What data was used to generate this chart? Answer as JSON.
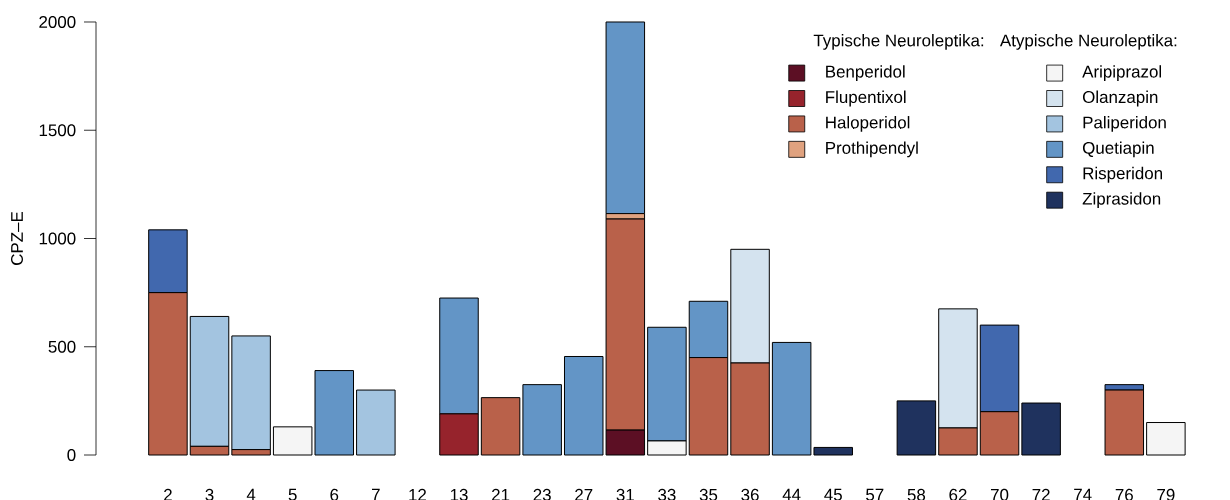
{
  "chart_data": {
    "type": "bar",
    "stacked": true,
    "ylabel": "CPZ–E",
    "legend": "top right",
    "annotations": [
      "Typische Neuroleptika:",
      "Atypische Neuroleptika:"
    ],
    "categories": [
      "2",
      "3",
      "4",
      "5",
      "6",
      "7",
      "12",
      "13",
      "21",
      "23",
      "27",
      "31",
      "33",
      "35",
      "36",
      "44",
      "45",
      "57",
      "58",
      "62",
      "70",
      "72",
      "74",
      "76",
      "79"
    ],
    "ylim": [
      0,
      2000
    ],
    "yticks": [
      0,
      500,
      1000,
      1500,
      2000
    ],
    "series": [
      {
        "name": "Benperidol",
        "color": "#5c0f24",
        "values": [
          0,
          0,
          0,
          0,
          0,
          0,
          0,
          0,
          0,
          0,
          0,
          115,
          0,
          0,
          0,
          0,
          0,
          0,
          0,
          0,
          0,
          0,
          0,
          0,
          0
        ]
      },
      {
        "name": "Flupentixol",
        "color": "#96232c",
        "values": [
          0,
          0,
          0,
          0,
          0,
          0,
          0,
          190,
          0,
          0,
          0,
          0,
          0,
          0,
          0,
          0,
          0,
          0,
          0,
          0,
          0,
          0,
          0,
          0,
          0
        ]
      },
      {
        "name": "Haloperidol",
        "color": "#b9614a",
        "values": [
          750,
          40,
          25,
          0,
          0,
          0,
          0,
          0,
          265,
          0,
          0,
          975,
          0,
          450,
          425,
          0,
          0,
          0,
          0,
          125,
          200,
          0,
          0,
          300,
          0
        ]
      },
      {
        "name": "Prothipendyl",
        "color": "#e0a27f",
        "values": [
          0,
          0,
          0,
          0,
          0,
          0,
          0,
          0,
          0,
          0,
          0,
          25,
          0,
          0,
          0,
          0,
          0,
          0,
          0,
          0,
          0,
          0,
          0,
          0,
          0
        ]
      },
      {
        "name": "Aripiprazol",
        "color": "#f5f5f5",
        "values": [
          0,
          0,
          0,
          130,
          0,
          0,
          0,
          0,
          0,
          0,
          0,
          0,
          65,
          0,
          0,
          0,
          0,
          0,
          0,
          0,
          0,
          0,
          0,
          0,
          150
        ]
      },
      {
        "name": "Olanzapin",
        "color": "#d4e3ef",
        "values": [
          0,
          0,
          0,
          0,
          0,
          0,
          0,
          0,
          0,
          0,
          0,
          0,
          0,
          0,
          525,
          0,
          0,
          0,
          0,
          550,
          0,
          0,
          0,
          0,
          0
        ]
      },
      {
        "name": "Paliperidon",
        "color": "#a3c4e0",
        "values": [
          0,
          600,
          525,
          0,
          0,
          300,
          0,
          0,
          0,
          0,
          0,
          0,
          0,
          0,
          0,
          0,
          0,
          0,
          0,
          0,
          0,
          0,
          0,
          0,
          0
        ]
      },
      {
        "name": "Quetiapin",
        "color": "#6395c6",
        "values": [
          0,
          0,
          0,
          0,
          390,
          0,
          0,
          535,
          0,
          325,
          455,
          885,
          525,
          260,
          0,
          520,
          0,
          0,
          0,
          0,
          0,
          0,
          0,
          0,
          0
        ]
      },
      {
        "name": "Risperidon",
        "color": "#4168ae",
        "values": [
          290,
          0,
          0,
          0,
          0,
          0,
          0,
          0,
          0,
          0,
          0,
          0,
          0,
          0,
          0,
          0,
          0,
          0,
          0,
          0,
          400,
          0,
          0,
          25,
          0
        ]
      },
      {
        "name": "Ziprasidon",
        "color": "#1f325e",
        "values": [
          0,
          0,
          0,
          0,
          0,
          0,
          0,
          0,
          0,
          0,
          0,
          0,
          0,
          0,
          0,
          0,
          35,
          0,
          250,
          0,
          0,
          240,
          0,
          0,
          0
        ]
      }
    ]
  }
}
